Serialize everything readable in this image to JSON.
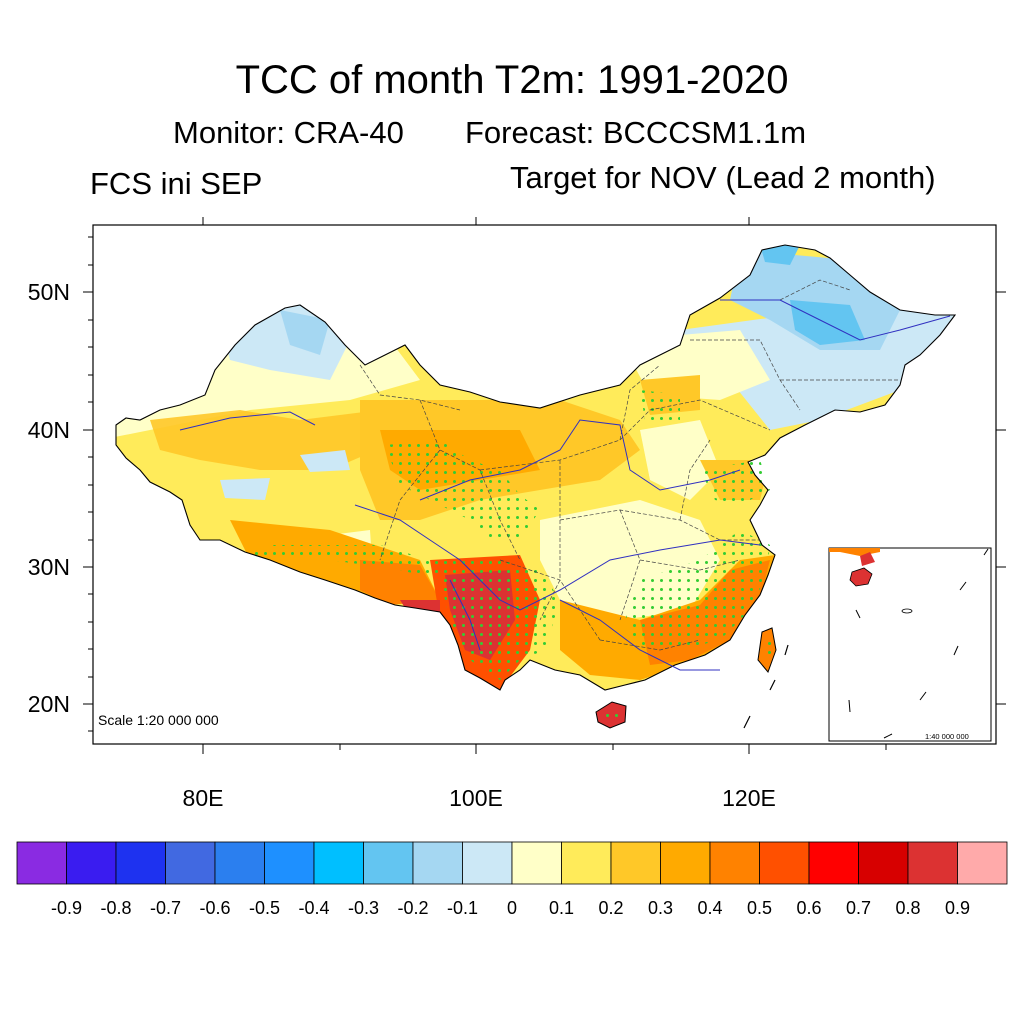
{
  "title": "TCC of month T2m: 1991-2020",
  "monitor": "Monitor: CRA-40",
  "forecast": "Forecast: BCCCSM1.1m",
  "init": "FCS ini SEP",
  "target": "Target for NOV (Lead 2 month)",
  "scale_main": "Scale 1:20 000 000",
  "scale_inset": "1:40 000 000",
  "lat_labels": [
    "50N",
    "40N",
    "30N",
    "20N"
  ],
  "lat_values": [
    50,
    40,
    30,
    20
  ],
  "lon_labels": [
    "80E",
    "100E",
    "120E"
  ],
  "lon_values": [
    80,
    100,
    120
  ],
  "colorbar": {
    "colors": [
      "#8a2be2",
      "#3a1cf0",
      "#1e32f0",
      "#4169e1",
      "#2b7fef",
      "#1e90ff",
      "#00bfff",
      "#63c5f1",
      "#a5d7f2",
      "#cce8f6",
      "#ffffc8",
      "#ffeb5a",
      "#ffc828",
      "#ffaa00",
      "#ff8200",
      "#ff5000",
      "#ff0000",
      "#d70000",
      "#dc3232",
      "#ffaaaa"
    ],
    "labels": [
      "-0.9",
      "-0.8",
      "-0.7",
      "-0.6",
      "-0.5",
      "-0.4",
      "-0.3",
      "-0.2",
      "-0.1",
      "0",
      "0.1",
      "0.2",
      "0.3",
      "0.4",
      "0.5",
      "0.6",
      "0.7",
      "0.8",
      "0.9"
    ]
  }
}
